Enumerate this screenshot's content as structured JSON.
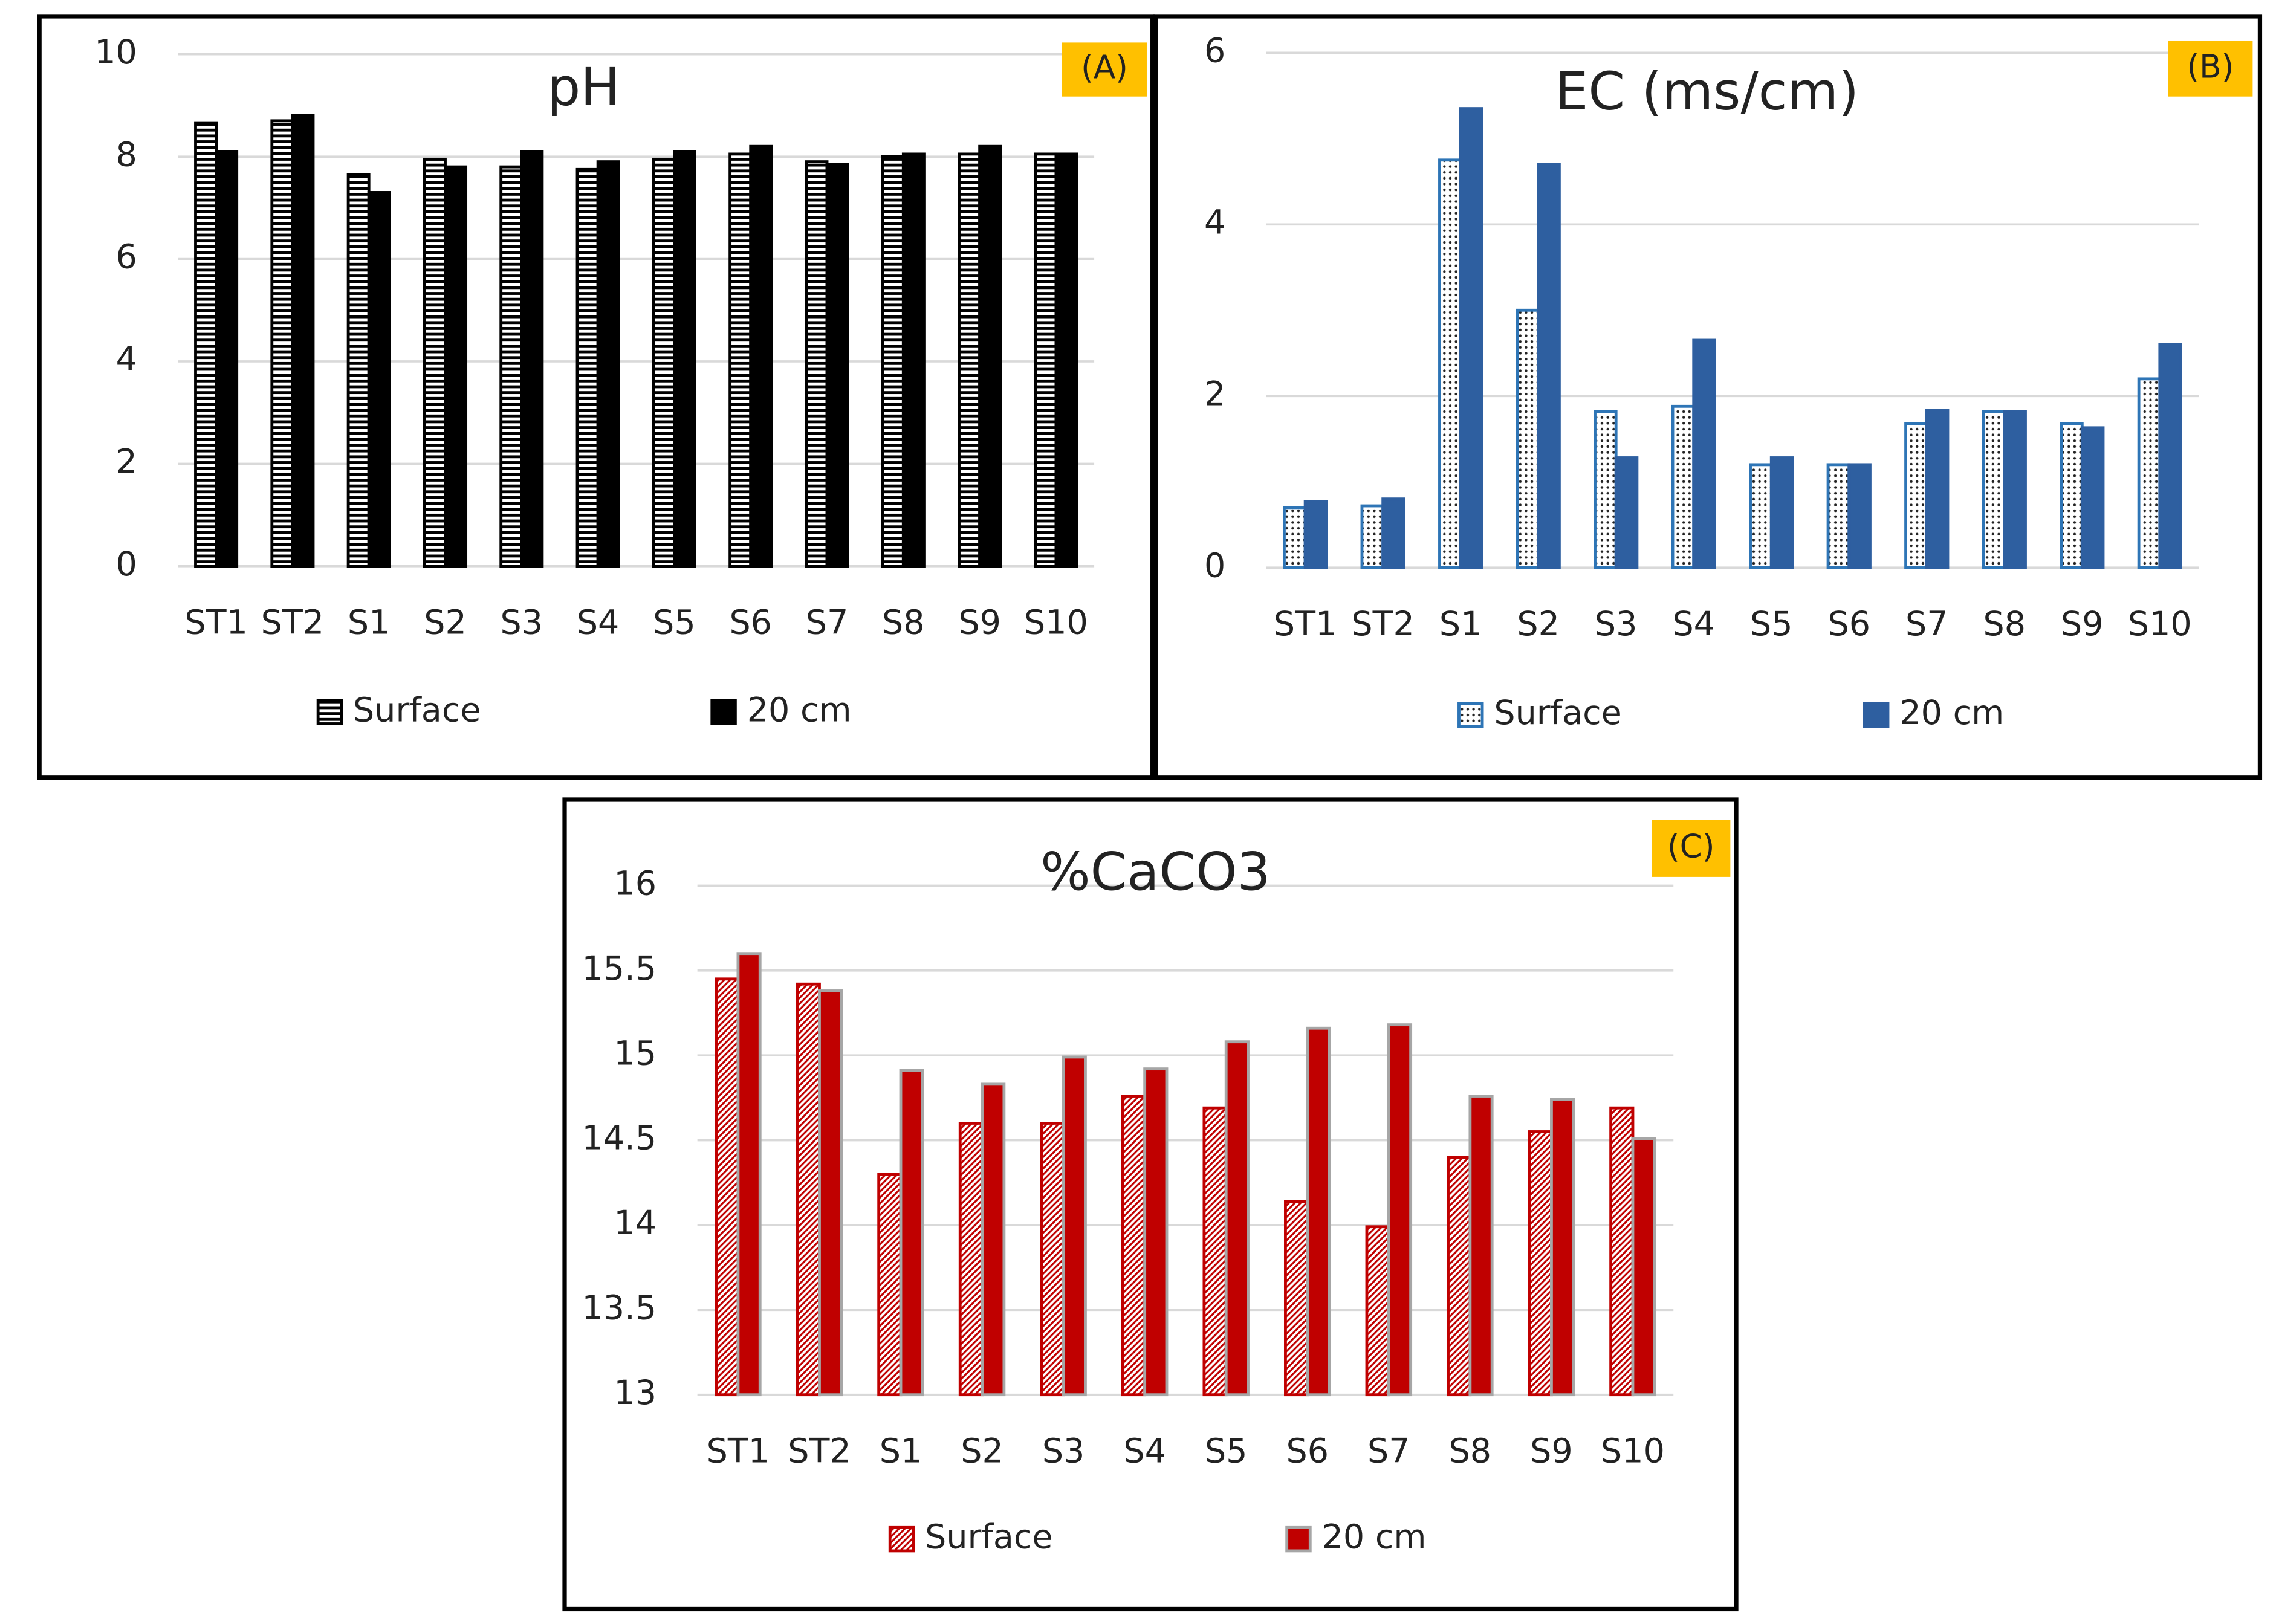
{
  "chart_data": [
    {
      "type": "bar",
      "title": "pH",
      "annotation": "(A)",
      "categories": [
        "ST1",
        "ST2",
        "S1",
        "S2",
        "S3",
        "S4",
        "S5",
        "S6",
        "S7",
        "S8",
        "S9",
        "S10"
      ],
      "series": [
        {
          "name": "Surface",
          "color": "#000000",
          "pattern": "horizontal",
          "values": [
            8.65,
            8.7,
            7.65,
            7.95,
            7.8,
            7.75,
            7.95,
            8.05,
            7.9,
            8.0,
            8.05,
            8.05
          ]
        },
        {
          "name": "20 cm",
          "color": "#000000",
          "values": [
            8.1,
            8.8,
            7.3,
            7.8,
            8.1,
            7.9,
            8.1,
            8.2,
            7.85,
            8.05,
            8.2,
            8.05
          ]
        }
      ],
      "ylim": [
        0,
        10
      ],
      "yticks": [
        0,
        2,
        4,
        6,
        8,
        10
      ],
      "grid": true,
      "legend": "bottom"
    },
    {
      "type": "bar",
      "title": "EC (ms/cm)",
      "annotation": "(B)",
      "categories": [
        "ST1",
        "ST2",
        "S1",
        "S2",
        "S3",
        "S4",
        "S5",
        "S6",
        "S7",
        "S8",
        "S9",
        "S10"
      ],
      "series": [
        {
          "name": "Surface",
          "color": "#2e75b6",
          "pattern": "dots",
          "values": [
            0.7,
            0.72,
            4.75,
            3.0,
            1.82,
            1.88,
            1.2,
            1.2,
            1.68,
            1.82,
            1.68,
            2.2
          ]
        },
        {
          "name": "20 cm",
          "color": "#2e5fa0",
          "values": [
            0.77,
            0.8,
            5.35,
            4.7,
            1.28,
            2.65,
            1.28,
            1.2,
            1.83,
            1.82,
            1.63,
            2.6
          ]
        }
      ],
      "ylim": [
        0,
        6
      ],
      "yticks": [
        0,
        2,
        4,
        6
      ],
      "grid": true,
      "legend": "bottom"
    },
    {
      "type": "bar",
      "title": "%CaCO3",
      "annotation": "(C)",
      "categories": [
        "ST1",
        "ST2",
        "S1",
        "S2",
        "S3",
        "S4",
        "S5",
        "S6",
        "S7",
        "S8",
        "S9",
        "S10"
      ],
      "series": [
        {
          "name": "Surface",
          "color": "#c00000",
          "pattern": "diagonal",
          "values": [
            15.45,
            15.42,
            14.3,
            14.6,
            14.6,
            14.76,
            14.69,
            14.14,
            13.99,
            14.4,
            14.55,
            14.69
          ]
        },
        {
          "name": "20 cm",
          "color": "#c00000",
          "edgecolor": "#a6a6a6",
          "values": [
            15.6,
            15.38,
            14.91,
            14.83,
            14.99,
            14.92,
            15.08,
            15.16,
            15.18,
            14.76,
            14.74,
            14.51
          ]
        }
      ],
      "ylim": [
        13,
        16
      ],
      "yticks": [
        13,
        13.5,
        14,
        14.5,
        15,
        15.5,
        16
      ],
      "grid": true,
      "legend": "bottom"
    }
  ]
}
